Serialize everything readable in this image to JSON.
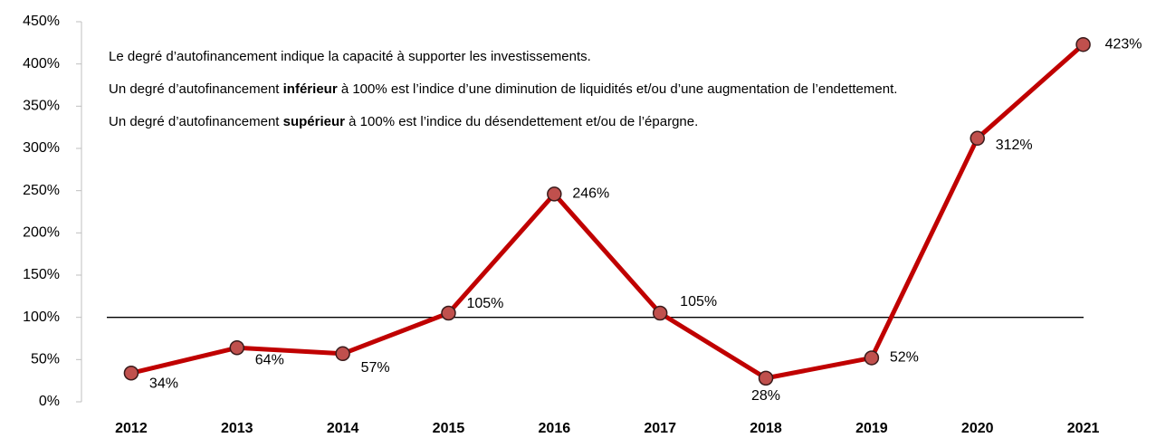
{
  "chart_data": {
    "type": "line",
    "categories": [
      "2012",
      "2013",
      "2014",
      "2015",
      "2016",
      "2017",
      "2018",
      "2019",
      "2020",
      "2021"
    ],
    "series": [
      {
        "color": "#c00000",
        "marker_color": "#c0504d",
        "values": [
          34,
          64,
          57,
          105,
          246,
          105,
          28,
          52,
          312,
          423
        ],
        "value_labels": [
          "34%",
          "64%",
          "57%",
          "105%",
          "246%",
          "105%",
          "28%",
          "52%",
          "312%",
          "423%"
        ]
      }
    ],
    "ylim": [
      0,
      450
    ],
    "yticks": [
      {
        "value": 0,
        "label": "0%"
      },
      {
        "value": 50,
        "label": "50%"
      },
      {
        "value": 100,
        "label": "100%"
      },
      {
        "value": 150,
        "label": "150%"
      },
      {
        "value": 200,
        "label": "200%"
      },
      {
        "value": 250,
        "label": "250%"
      },
      {
        "value": 300,
        "label": "300%"
      },
      {
        "value": 350,
        "label": "350%"
      },
      {
        "value": 400,
        "label": "400%"
      },
      {
        "value": 450,
        "label": "450%"
      }
    ],
    "reference_line": 100,
    "annotations": [
      [
        {
          "text": "Le degré d’autofinancement indique la capacité à supporter les investissements.",
          "bold": false
        }
      ],
      [
        {
          "text": "Un degré d’autofinancement ",
          "bold": false
        },
        {
          "text": "inférieur",
          "bold": true
        },
        {
          "text": " à 100% est l’indice d’une diminution de liquidités et/ou d’une augmentation de l’endettement.",
          "bold": false
        }
      ],
      [
        {
          "text": "Un degré d’autofinancement ",
          "bold": false
        },
        {
          "text": "supérieur",
          "bold": true
        },
        {
          "text": " à 100% est l’indice du désendettement et/ou de l’épargne.",
          "bold": false
        }
      ]
    ]
  }
}
